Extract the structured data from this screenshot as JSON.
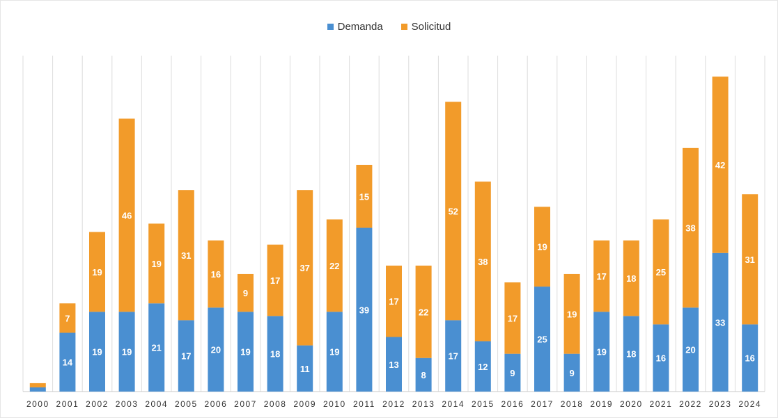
{
  "chart_data": {
    "type": "bar",
    "stacked": true,
    "legend_position": "top-center",
    "grid": "vertical",
    "categories": [
      "2000",
      "2001",
      "2002",
      "2003",
      "2004",
      "2005",
      "2006",
      "2007",
      "2008",
      "2009",
      "2010",
      "2011",
      "2012",
      "2013",
      "2014",
      "2015",
      "2016",
      "2017",
      "2018",
      "2019",
      "2020",
      "2021",
      "2022",
      "2023",
      "2024"
    ],
    "series": [
      {
        "name": "Demanda",
        "color": "#4a8fd1",
        "values": [
          1,
          14,
          19,
          19,
          21,
          17,
          20,
          19,
          18,
          11,
          19,
          39,
          13,
          8,
          17,
          12,
          9,
          25,
          9,
          19,
          18,
          16,
          20,
          33,
          16
        ]
      },
      {
        "name": "Solicitud",
        "color": "#f29b2a",
        "values": [
          1,
          7,
          19,
          46,
          19,
          31,
          16,
          9,
          17,
          37,
          22,
          15,
          17,
          22,
          52,
          38,
          17,
          19,
          19,
          17,
          18,
          25,
          38,
          42,
          31
        ]
      }
    ],
    "show_data_labels": true,
    "ylim": [
      0,
      80
    ]
  }
}
